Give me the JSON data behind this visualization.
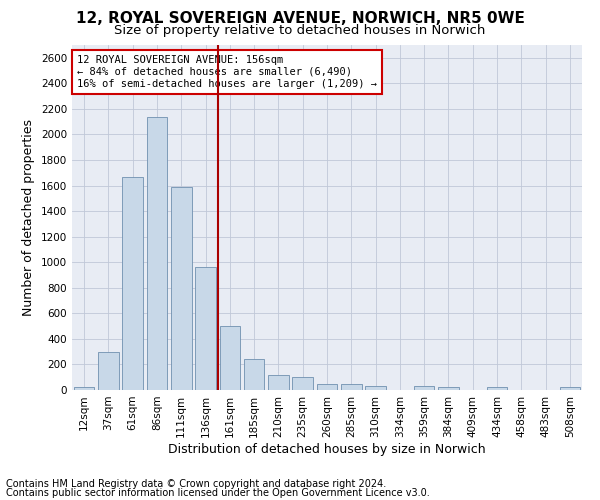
{
  "title1": "12, ROYAL SOVEREIGN AVENUE, NORWICH, NR5 0WE",
  "title2": "Size of property relative to detached houses in Norwich",
  "xlabel": "Distribution of detached houses by size in Norwich",
  "ylabel": "Number of detached properties",
  "categories": [
    "12sqm",
    "37sqm",
    "61sqm",
    "86sqm",
    "111sqm",
    "136sqm",
    "161sqm",
    "185sqm",
    "210sqm",
    "235sqm",
    "260sqm",
    "285sqm",
    "310sqm",
    "334sqm",
    "359sqm",
    "384sqm",
    "409sqm",
    "434sqm",
    "458sqm",
    "483sqm",
    "508sqm"
  ],
  "values": [
    25,
    295,
    1670,
    2140,
    1590,
    960,
    500,
    245,
    120,
    100,
    50,
    50,
    35,
    0,
    35,
    20,
    0,
    20,
    0,
    0,
    25
  ],
  "bar_color": "#c8d8e8",
  "bar_edgecolor": "#7090b0",
  "vline_x": 6,
  "vline_color": "#aa0000",
  "annotation_text": "12 ROYAL SOVEREIGN AVENUE: 156sqm\n← 84% of detached houses are smaller (6,490)\n16% of semi-detached houses are larger (1,209) →",
  "annotation_box_facecolor": "white",
  "annotation_box_edgecolor": "#cc0000",
  "ylim": [
    0,
    2700
  ],
  "yticks": [
    0,
    200,
    400,
    600,
    800,
    1000,
    1200,
    1400,
    1600,
    1800,
    2000,
    2200,
    2400,
    2600
  ],
  "grid_color": "#c0c8d8",
  "background_color": "#e8ecf4",
  "footer1": "Contains HM Land Registry data © Crown copyright and database right 2024.",
  "footer2": "Contains public sector information licensed under the Open Government Licence v3.0.",
  "title1_fontsize": 11,
  "title2_fontsize": 9.5,
  "tick_fontsize": 7.5,
  "ylabel_fontsize": 9,
  "xlabel_fontsize": 9,
  "footer_fontsize": 7,
  "annot_fontsize": 7.5
}
